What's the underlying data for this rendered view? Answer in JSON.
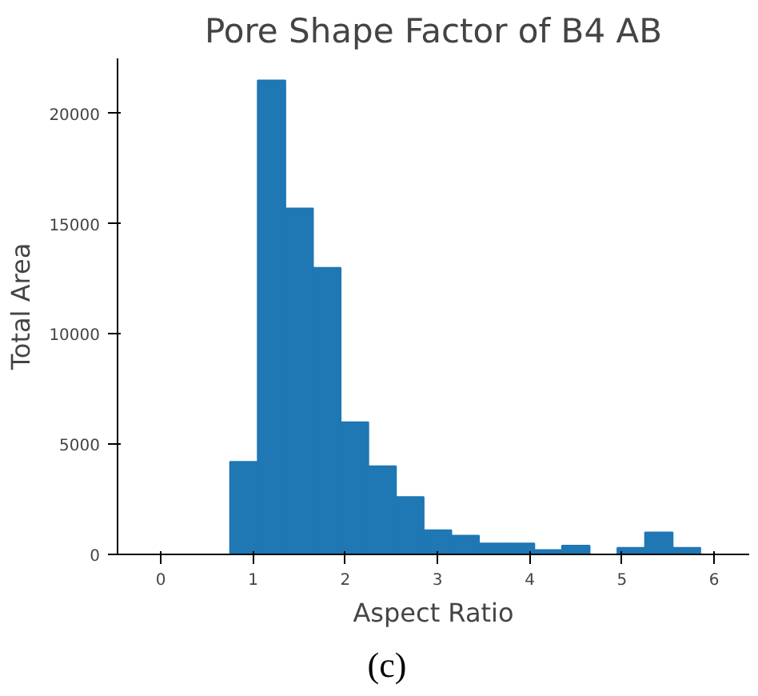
{
  "chart_data": {
    "type": "histogram",
    "title": "Pore Shape Factor of B4 AB",
    "xlabel": "Aspect Ratio",
    "ylabel": "Total Area",
    "bins": [
      0.75,
      1.05,
      1.35,
      1.65,
      1.95,
      2.25,
      2.55,
      2.85,
      3.15,
      3.45,
      3.75,
      4.05,
      4.35,
      4.65,
      4.95,
      5.25,
      5.55,
      5.85
    ],
    "values": [
      4200,
      21500,
      15700,
      13000,
      6000,
      4000,
      2600,
      1100,
      850,
      500,
      500,
      200,
      400,
      0,
      300,
      1000,
      300
    ],
    "color": "#1f77b4",
    "xlim": [
      -0.47,
      6.38
    ],
    "ylim": [
      0,
      22500
    ],
    "xticks": [
      0,
      1,
      2,
      3,
      4,
      5,
      6
    ],
    "yticks": [
      0,
      5000,
      10000,
      15000,
      20000
    ],
    "grid": false,
    "annotations": [
      "(c)"
    ]
  }
}
